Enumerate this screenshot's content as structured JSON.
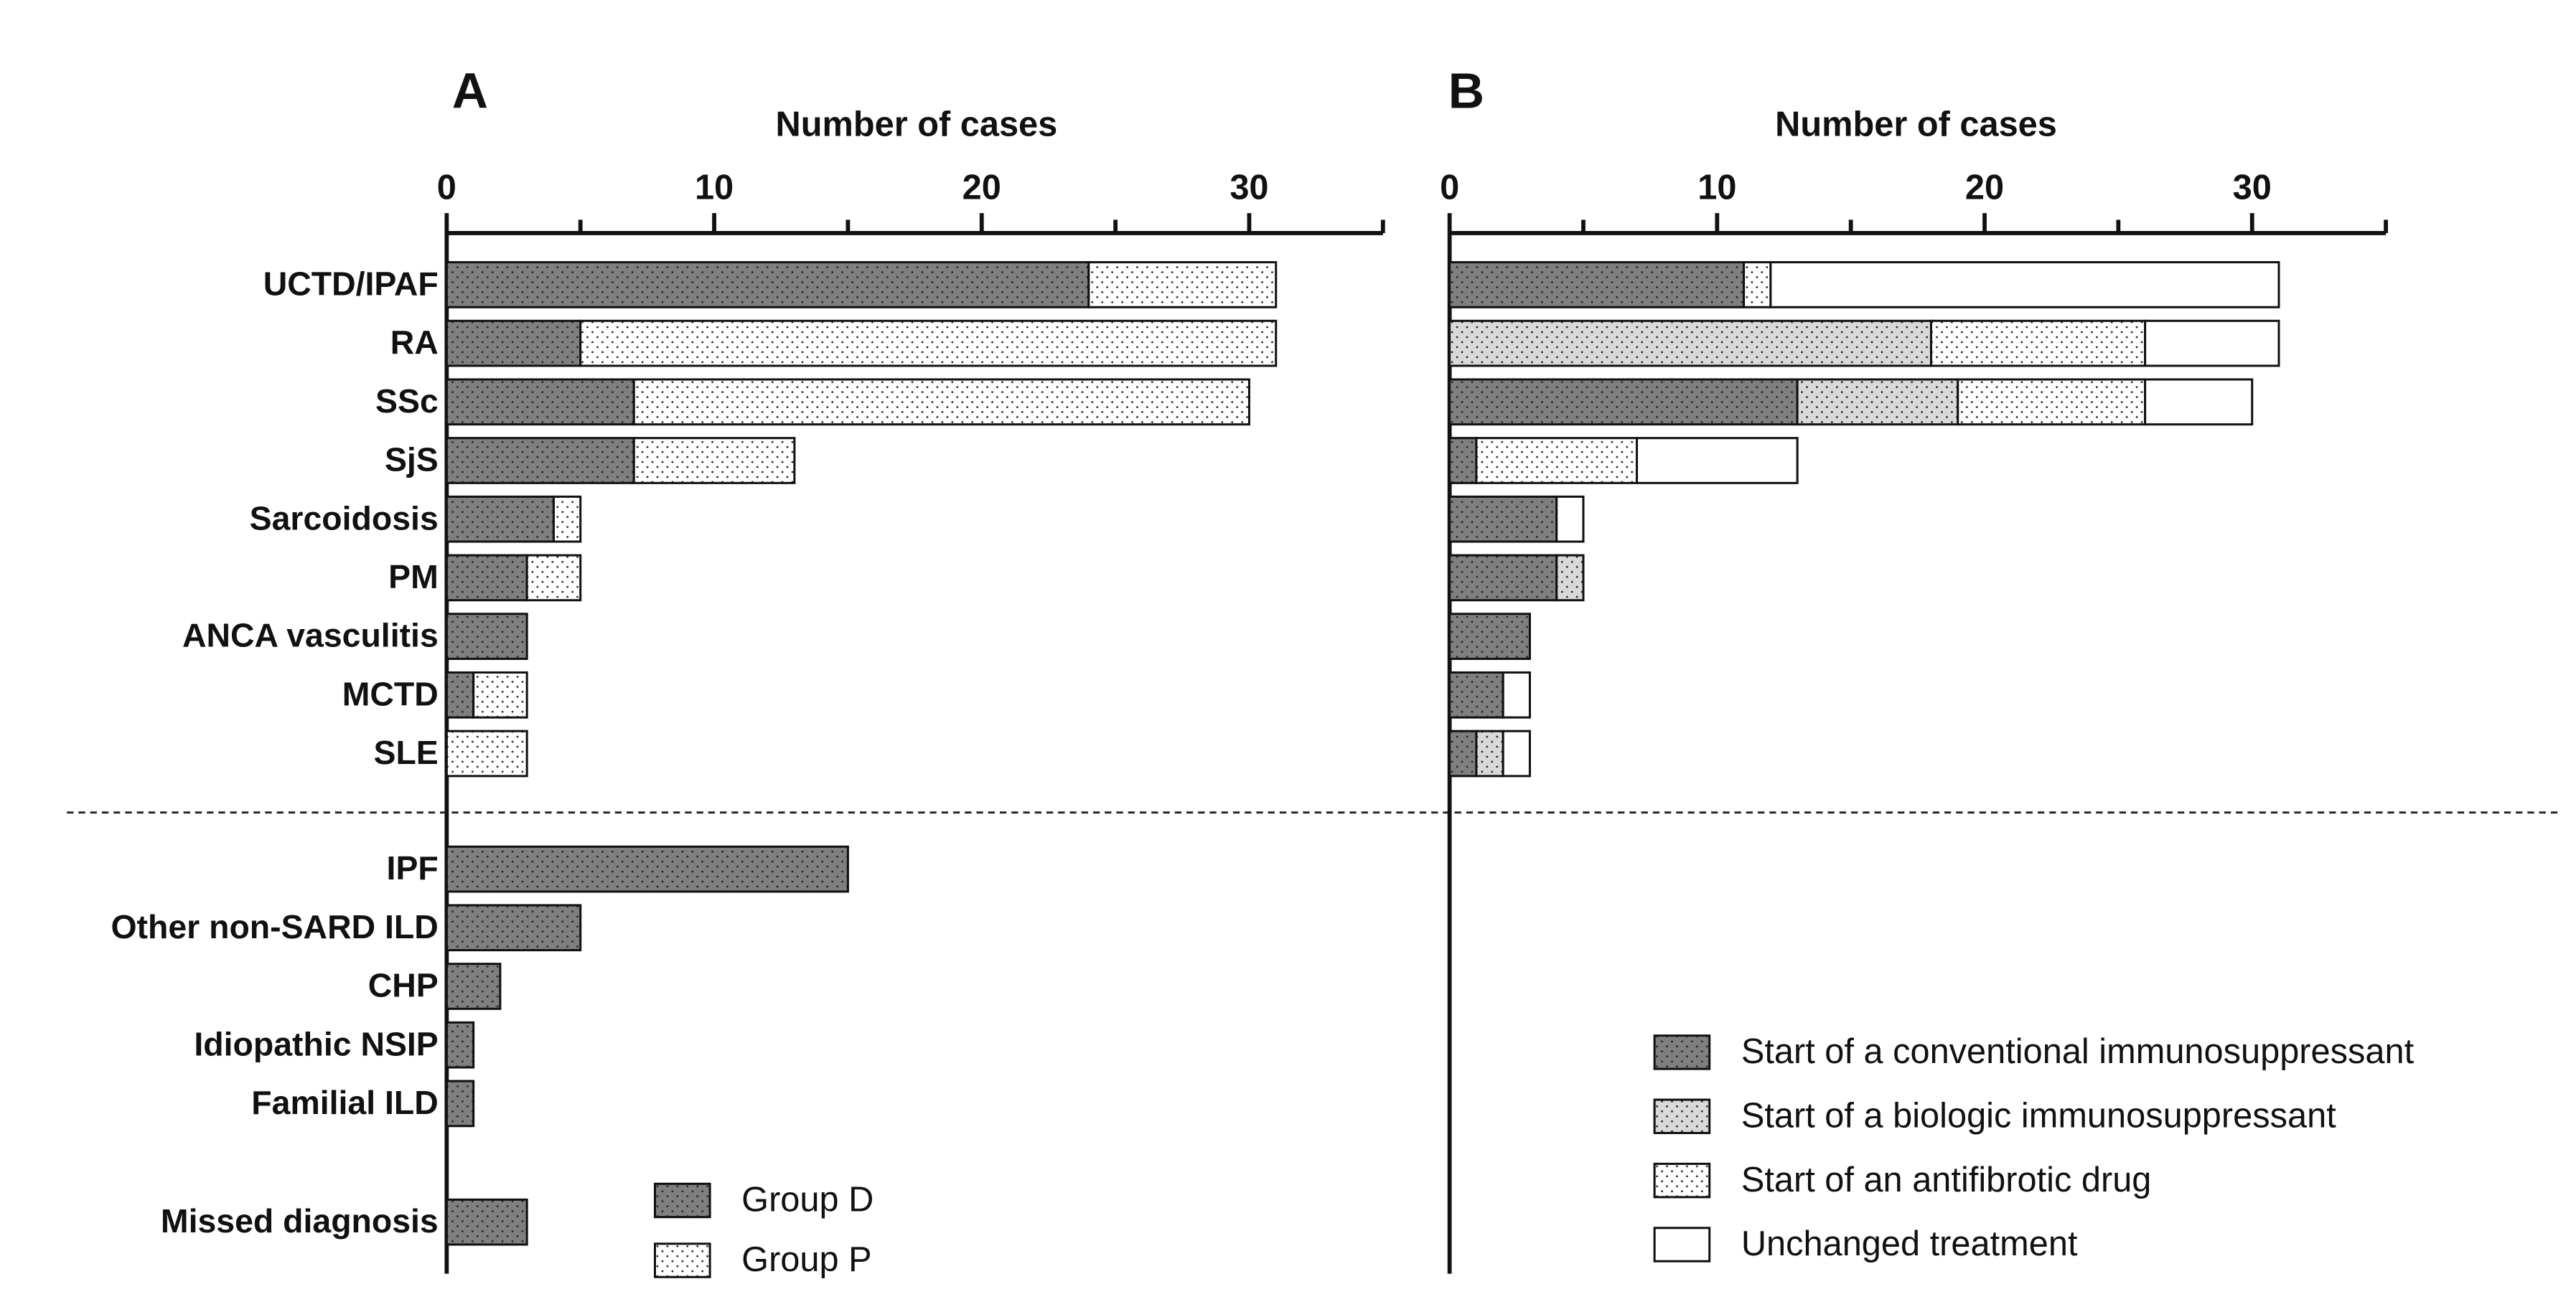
{
  "chart_data": [
    {
      "type": "bar",
      "orientation": "horizontal",
      "stacked": true,
      "panel": "A",
      "xlabel": "Number of cases",
      "categories": [
        "UCTD/IPAF",
        "RA",
        "SSc",
        "SjS",
        "Sarcoidosis",
        "PM",
        "ANCA vasculitis",
        "MCTD",
        "SLE",
        "IPF",
        "Other non-SARD ILD",
        "CHP",
        "Idiopathic NSIP",
        "Familial ILD",
        "Missed diagnosis"
      ],
      "series": [
        {
          "name": "Group D",
          "color": "#7f7f7f",
          "hatch": "dots",
          "values": [
            24,
            5,
            7,
            7,
            4,
            3,
            3,
            1,
            0,
            15,
            5,
            2,
            1,
            1,
            3
          ]
        },
        {
          "name": "Group P",
          "color": "#ffffff",
          "hatch": "dots",
          "values": [
            7,
            26,
            23,
            6,
            1,
            2,
            0,
            2,
            3,
            null,
            null,
            null,
            null,
            null,
            null
          ]
        }
      ],
      "xlim": [
        0,
        35
      ],
      "xticks": [
        0,
        10,
        20,
        30
      ],
      "xticks_minor": [
        5,
        15,
        25,
        35
      ]
    },
    {
      "type": "bar",
      "orientation": "horizontal",
      "stacked": true,
      "panel": "B",
      "xlabel": "Number of cases",
      "series": [
        {
          "name": "Start of a conventional immunosuppressant",
          "color": "#7f7f7f",
          "hatch": "dots",
          "values": [
            11,
            0,
            13,
            1,
            4,
            4,
            3,
            2,
            1
          ]
        },
        {
          "name": "Start of a biologic immunosuppressant",
          "color": "#d9d9d9",
          "hatch": "dots",
          "values": [
            0,
            18,
            6,
            0,
            0,
            1,
            0,
            0,
            1
          ]
        },
        {
          "name": "Start of an antifibrotic drug",
          "color": "#ffffff",
          "hatch": "dots",
          "values": [
            1,
            8,
            7,
            6,
            0,
            0,
            0,
            0,
            0
          ]
        },
        {
          "name": "Unchanged treatment",
          "color": "#ffffff",
          "hatch": "none",
          "values": [
            19,
            5,
            4,
            6,
            1,
            0,
            0,
            1,
            1
          ]
        }
      ],
      "xlim": [
        0,
        35
      ],
      "xticks": [
        0,
        10,
        20,
        30
      ],
      "xticks_minor": [
        5,
        15,
        25,
        35
      ]
    }
  ]
}
